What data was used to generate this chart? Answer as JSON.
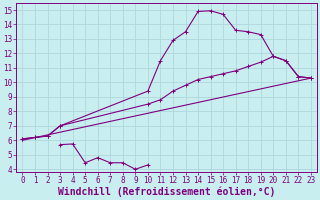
{
  "xlabel": "Windchill (Refroidissement éolien,°C)",
  "background_color": "#c8eef0",
  "line_color": "#800080",
  "xlim": [
    -0.5,
    23.5
  ],
  "ylim": [
    3.8,
    15.5
  ],
  "xticks": [
    0,
    1,
    2,
    3,
    4,
    5,
    6,
    7,
    8,
    9,
    10,
    11,
    12,
    13,
    14,
    15,
    16,
    17,
    18,
    19,
    20,
    21,
    22,
    23
  ],
  "yticks": [
    4,
    5,
    6,
    7,
    8,
    9,
    10,
    11,
    12,
    13,
    14,
    15
  ],
  "line1_x": [
    0,
    1,
    2,
    3,
    10,
    11,
    12,
    13,
    14,
    15,
    16,
    17,
    18,
    19,
    20,
    21,
    22,
    23
  ],
  "line1_y": [
    6.1,
    6.2,
    6.3,
    7.0,
    9.4,
    11.5,
    12.9,
    13.5,
    14.9,
    14.95,
    14.7,
    13.6,
    13.5,
    13.3,
    11.8,
    11.5,
    10.4,
    10.3
  ],
  "line2_x": [
    0,
    1,
    2,
    3,
    10,
    11,
    12,
    13,
    14,
    15,
    16,
    17,
    18,
    19,
    20,
    21,
    22,
    23
  ],
  "line2_y": [
    6.1,
    6.2,
    6.3,
    7.0,
    8.5,
    8.8,
    9.4,
    9.8,
    10.2,
    10.4,
    10.6,
    10.8,
    11.1,
    11.4,
    11.8,
    11.5,
    10.4,
    10.3
  ],
  "line3_x": [
    3,
    4,
    5,
    6,
    7,
    8,
    9,
    10
  ],
  "line3_y": [
    5.7,
    5.75,
    4.45,
    4.8,
    4.45,
    4.45,
    4.0,
    4.3
  ],
  "line4_x": [
    0,
    23
  ],
  "line4_y": [
    6.0,
    10.3
  ],
  "grid_color": "#b0d8dc",
  "tick_fontsize": 5.5,
  "xlabel_fontsize": 7.0
}
